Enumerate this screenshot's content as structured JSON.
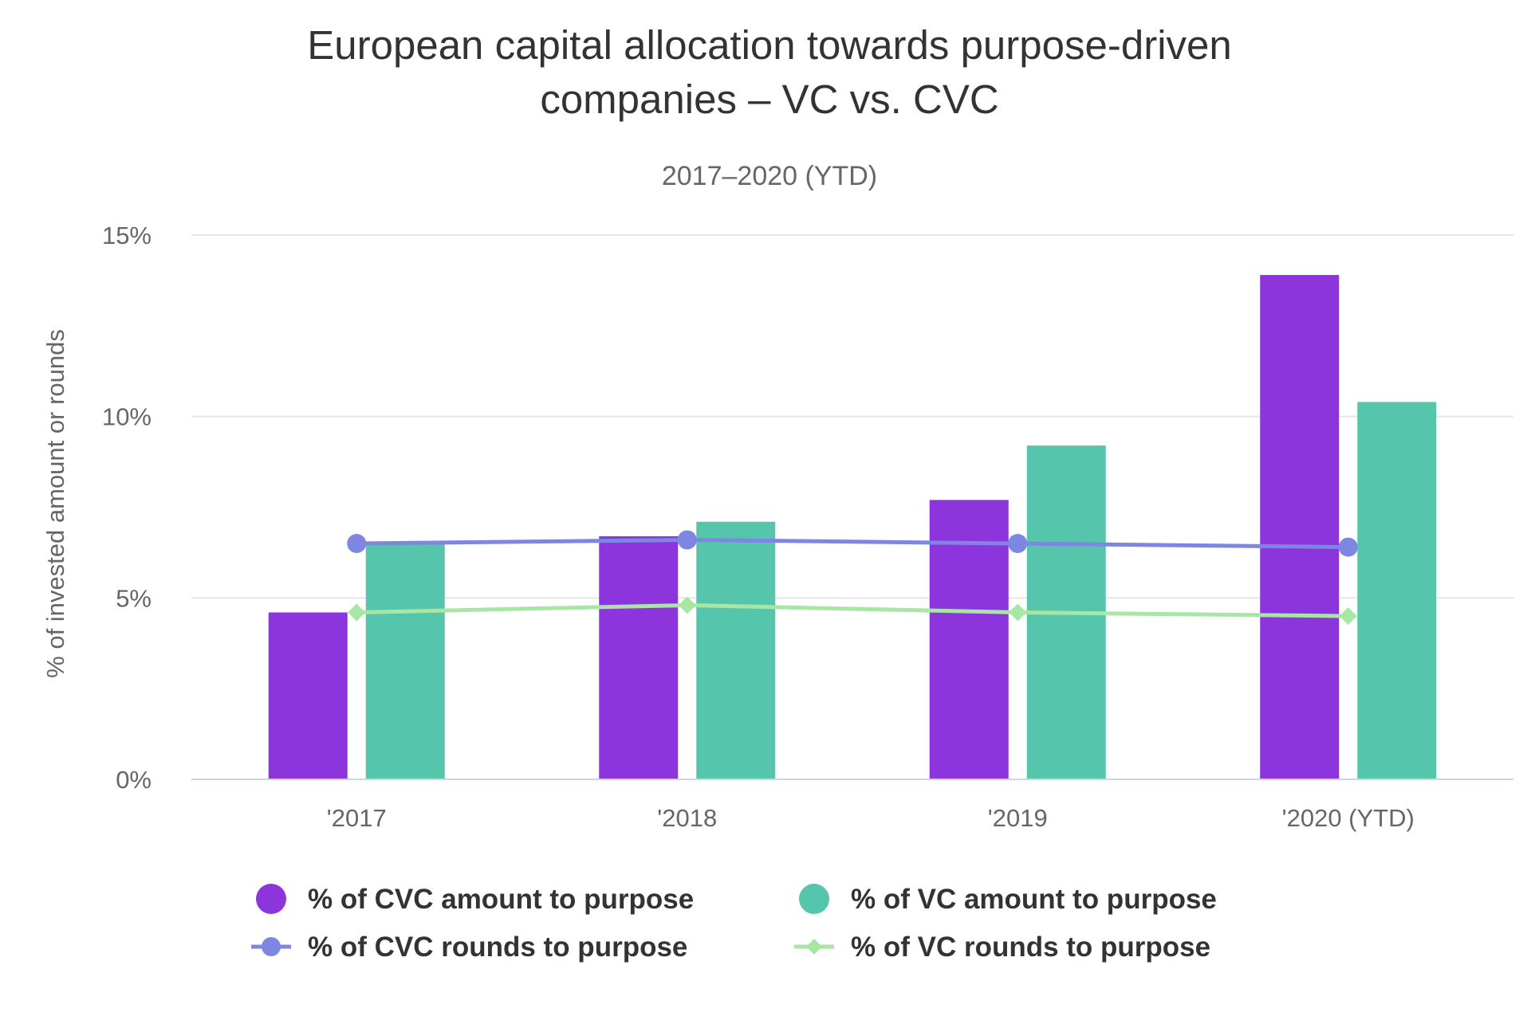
{
  "chart_data": {
    "type": "bar",
    "title_lines": [
      "European capital allocation towards purpose-driven",
      "companies – VC vs. CVC"
    ],
    "subtitle": "2017–2020 (YTD)",
    "ylabel": "% of invested amount or rounds",
    "categories": [
      "'2017",
      "'2018",
      "'2019",
      "'2020 (YTD)"
    ],
    "ylim": [
      0,
      15
    ],
    "yticks": [
      0,
      5,
      10,
      15
    ],
    "ytick_labels": [
      "0%",
      "5%",
      "10%",
      "15%"
    ],
    "grid": true,
    "legend_position": "bottom",
    "bar_series": [
      {
        "name": "% of CVC amount to purpose",
        "color": "#8c35dd",
        "values": [
          4.6,
          6.7,
          7.7,
          13.9
        ]
      },
      {
        "name": "% of VC amount to purpose",
        "color": "#55c6ab",
        "values": [
          6.5,
          7.1,
          9.2,
          10.4
        ]
      }
    ],
    "line_series": [
      {
        "name": "% of CVC rounds to purpose",
        "color": "#7d86e0",
        "marker": "circle",
        "values": [
          6.5,
          6.6,
          6.5,
          6.4
        ]
      },
      {
        "name": "% of VC rounds to purpose",
        "color": "#a8e6a6",
        "marker": "diamond",
        "values": [
          4.6,
          4.8,
          4.6,
          4.5
        ]
      }
    ]
  }
}
